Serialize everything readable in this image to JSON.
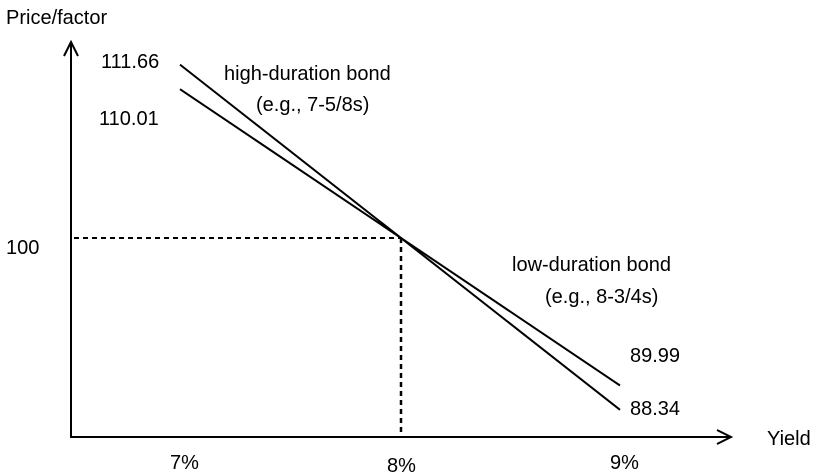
{
  "chart_data": {
    "type": "line",
    "ylabel": "Price/factor",
    "xlabel": "Yield",
    "x_ticks": [
      {
        "value": 7,
        "label": "7%"
      },
      {
        "value": 8,
        "label": "8%"
      },
      {
        "value": 9,
        "label": "9%"
      }
    ],
    "y_ticks": [
      {
        "value": 100,
        "label": "100"
      }
    ],
    "grid": false,
    "series": [
      {
        "x": [
          7,
          8,
          9
        ],
        "values": [
          111.66,
          100,
          88.34
        ],
        "start_label": "111.66",
        "end_label": "88.34",
        "annotation": [
          "high-duration bond",
          "(e.g., 7-5/8s)"
        ]
      },
      {
        "x": [
          7,
          8,
          9
        ],
        "values": [
          110.01,
          100,
          89.99
        ],
        "start_label": "110.01",
        "end_label": "89.99",
        "annotation": [
          "low-duration bond",
          "(e.g., 8-3/4s)"
        ]
      }
    ],
    "reference_point": {
      "x": 8,
      "y": 100
    },
    "colors": {
      "line": "#000000",
      "background": "#ffffff"
    }
  }
}
